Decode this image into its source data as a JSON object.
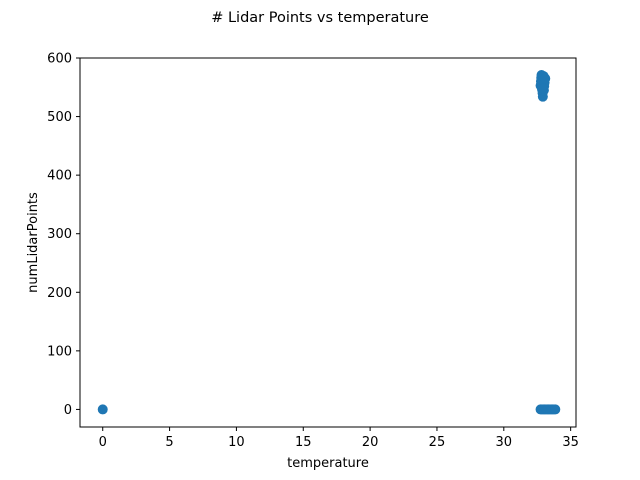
{
  "chart_data": {
    "type": "scatter",
    "title": "# Lidar Points vs temperature",
    "xlabel": "temperature",
    "ylabel": "numLidarPoints",
    "xlim": [
      -1.7,
      35.4
    ],
    "ylim": [
      -30,
      600
    ],
    "xticks": [
      0,
      5,
      10,
      15,
      20,
      25,
      30,
      35
    ],
    "yticks": [
      0,
      100,
      200,
      300,
      400,
      500,
      600
    ],
    "grid": false,
    "marker_color": "#1f77b4",
    "series": [
      {
        "name": "numLidarPoints",
        "points": [
          [
            0.0,
            0
          ],
          [
            32.75,
            0
          ],
          [
            32.85,
            0
          ],
          [
            32.95,
            0
          ],
          [
            33.05,
            0
          ],
          [
            33.15,
            0
          ],
          [
            33.25,
            0
          ],
          [
            33.35,
            0
          ],
          [
            33.45,
            0
          ],
          [
            33.55,
            0
          ],
          [
            33.65,
            0
          ],
          [
            33.75,
            0
          ],
          [
            33.85,
            0
          ],
          [
            32.75,
            553
          ],
          [
            32.78,
            560
          ],
          [
            32.8,
            566
          ],
          [
            32.82,
            571
          ],
          [
            32.85,
            548
          ],
          [
            32.87,
            557
          ],
          [
            32.9,
            540
          ],
          [
            32.92,
            534
          ],
          [
            32.95,
            562
          ],
          [
            32.98,
            569
          ],
          [
            33.0,
            545
          ],
          [
            33.02,
            552
          ],
          [
            33.05,
            558
          ],
          [
            33.1,
            565
          ],
          [
            32.88,
            545
          ],
          [
            32.93,
            548
          ]
        ]
      }
    ]
  }
}
